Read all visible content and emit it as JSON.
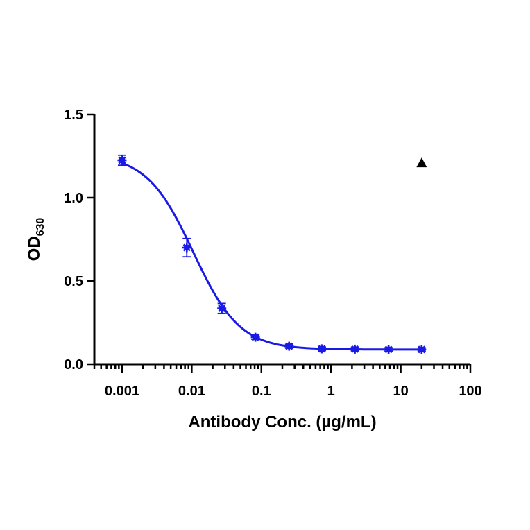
{
  "chart_data": {
    "type": "scatter",
    "title": "",
    "xlabel": "Antibody Conc. (µg/mL)",
    "ylabel": "OD",
    "ylabel_subscript": "630",
    "xscale": "log",
    "xlim": [
      0.0004,
      100
    ],
    "ylim": [
      0,
      1.5
    ],
    "x_ticks": [
      0.001,
      0.01,
      0.1,
      1,
      10,
      100
    ],
    "x_tick_labels": [
      "0.001",
      "0.01",
      "0.1",
      "1",
      "10",
      "100"
    ],
    "y_ticks": [
      0,
      0.5,
      1.0,
      1.5
    ],
    "y_tick_labels": [
      "0.0",
      "0.5",
      "1.0",
      "1.5"
    ],
    "grid": false,
    "series": [
      {
        "color": "#1a1ae6",
        "marker": "asterisk",
        "x": [
          0.001,
          0.0085,
          0.027,
          0.082,
          0.25,
          0.74,
          2.2,
          6.7,
          20
        ],
        "y": [
          1.225,
          0.7,
          0.335,
          0.162,
          0.108,
          0.092,
          0.09,
          0.088,
          0.088
        ],
        "error": [
          0.03,
          0.055,
          0.03,
          0.012,
          0.01,
          0.01,
          0.01,
          0.01,
          0.01
        ],
        "fit": {
          "type": "4PL",
          "bottom": 0.088,
          "top": 1.26,
          "ec50": 0.0105,
          "hill": 1.3
        }
      }
    ],
    "annotations": [
      {
        "shape": "triangle",
        "color": "#000000",
        "x": 20,
        "y": 1.21
      }
    ]
  }
}
